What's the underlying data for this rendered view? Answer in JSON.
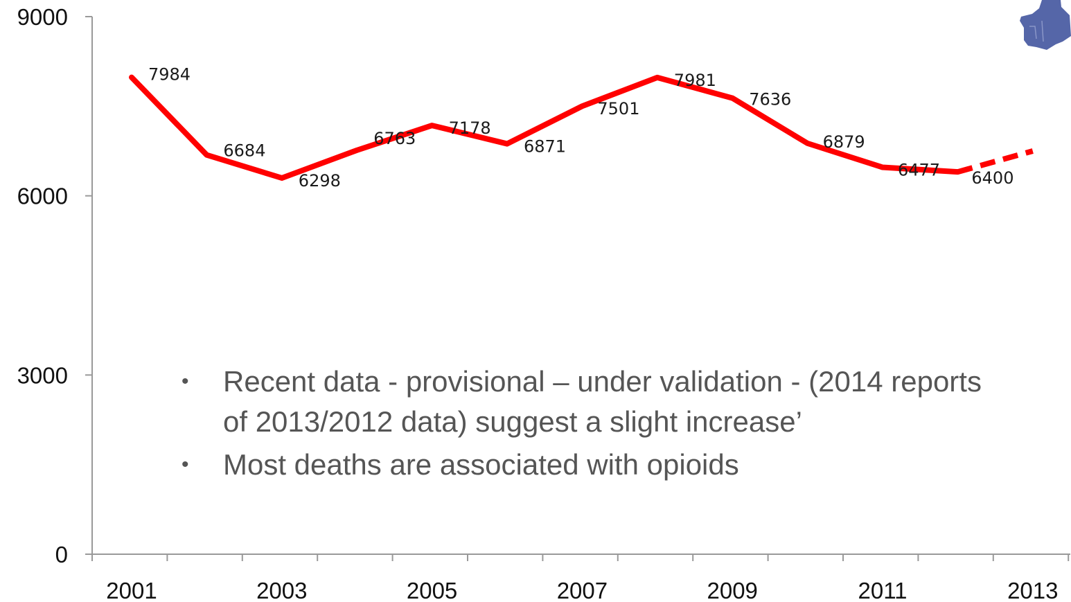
{
  "chart_data": {
    "type": "line",
    "title": "",
    "xlabel": "",
    "ylabel": "",
    "ylim": [
      0,
      9000
    ],
    "yticks": [
      "0",
      "3000",
      "6000",
      "9000"
    ],
    "xticks": [
      "2001",
      "2003",
      "2005",
      "2007",
      "2009",
      "2011",
      "2013"
    ],
    "x": [
      2001,
      2002,
      2003,
      2004,
      2005,
      2006,
      2007,
      2008,
      2009,
      2010,
      2011,
      2012
    ],
    "series": [
      {
        "color": "#ff0000",
        "values": [
          7984,
          6684,
          6298,
          6763,
          7178,
          6871,
          7501,
          7981,
          7636,
          6879,
          6477,
          6400
        ],
        "labels": [
          "7984",
          "6684",
          "6298",
          "6763",
          "7178",
          "6871",
          "7501",
          "7981",
          "7636",
          "6879",
          "6477",
          "6400"
        ]
      }
    ],
    "dashed_projection": {
      "x": [
        2012,
        2013
      ],
      "values": [
        6400,
        6750
      ],
      "color": "#ff0000"
    },
    "grid": false
  },
  "notes": [
    "Recent data  - provisional – under validation - (2014 reports of 2013/2012 data) suggest  a slight increase’",
    "Most deaths are associated with opioids"
  ],
  "decor": {
    "map_color": "#5566a8",
    "icon": "map-fragment-icon"
  }
}
